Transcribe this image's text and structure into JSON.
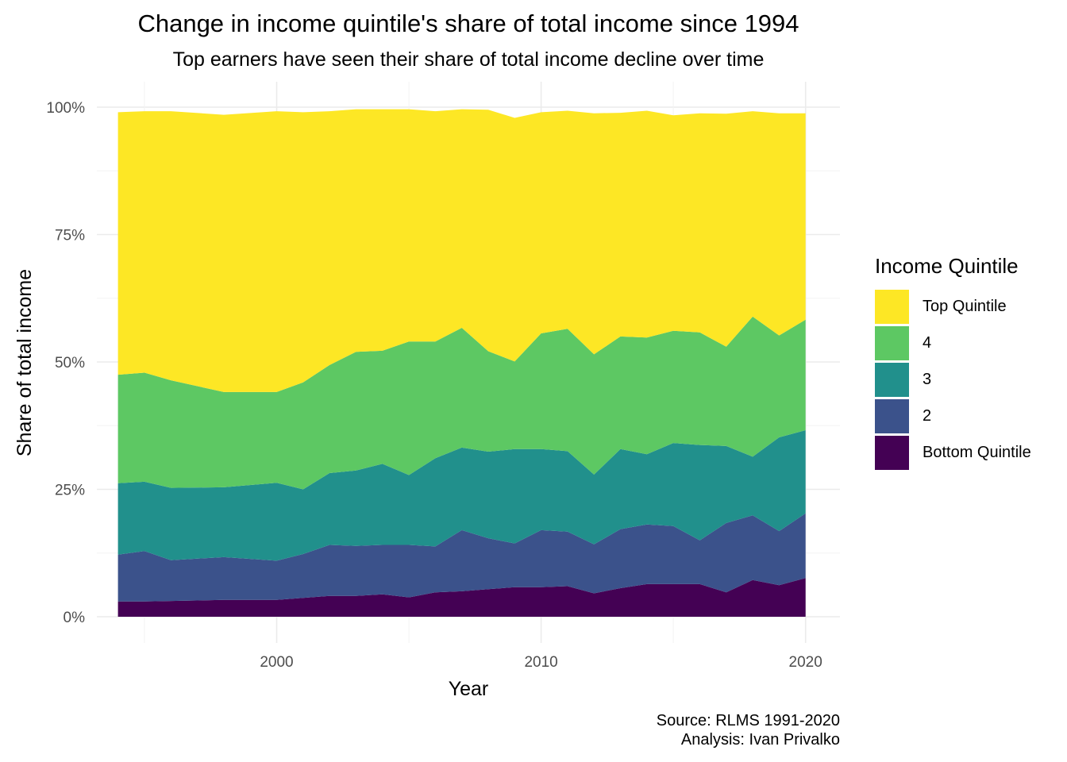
{
  "title": "Change in income quintile's share of total income since 1994",
  "subtitle": "Top earners have seen their share of total income decline over time",
  "caption": [
    "Source: RLMS 1991-2020",
    "Analysis: Ivan Privalko"
  ],
  "chart_data": {
    "type": "area",
    "stacked": true,
    "xlabel": "Year",
    "ylabel": "Share of total income",
    "xlim": [
      1993.2,
      2021.3
    ],
    "ylim": [
      0,
      1
    ],
    "x_ticks": [
      2000,
      2010,
      2020
    ],
    "y_ticks": [
      0,
      0.25,
      0.5,
      0.75,
      1.0
    ],
    "y_tick_labels": [
      "0%",
      "25%",
      "50%",
      "75%",
      "100%"
    ],
    "legend_title": "Income Quintile",
    "legend_position": "right",
    "x": [
      1994,
      1995,
      1996,
      1998,
      2000,
      2001,
      2002,
      2003,
      2004,
      2005,
      2006,
      2007,
      2008,
      2009,
      2010,
      2011,
      2012,
      2013,
      2014,
      2015,
      2016,
      2017,
      2018,
      2019,
      2020
    ],
    "series": [
      {
        "name": "Bottom Quintile",
        "color": "#440154",
        "values": [
          0.03,
          0.03,
          0.031,
          0.033,
          0.033,
          0.037,
          0.041,
          0.041,
          0.044,
          0.038,
          0.048,
          0.05,
          0.054,
          0.058,
          0.058,
          0.06,
          0.046,
          0.056,
          0.064,
          0.064,
          0.064,
          0.048,
          0.072,
          0.062,
          0.076
        ]
      },
      {
        "name": "2",
        "color": "#3B528B",
        "values": [
          0.092,
          0.099,
          0.08,
          0.084,
          0.077,
          0.086,
          0.1,
          0.098,
          0.097,
          0.103,
          0.09,
          0.12,
          0.1,
          0.086,
          0.112,
          0.107,
          0.096,
          0.116,
          0.117,
          0.114,
          0.086,
          0.136,
          0.127,
          0.106,
          0.127
        ]
      },
      {
        "name": "3",
        "color": "#21908C",
        "values": [
          0.14,
          0.136,
          0.142,
          0.137,
          0.153,
          0.127,
          0.141,
          0.148,
          0.159,
          0.137,
          0.173,
          0.162,
          0.17,
          0.185,
          0.159,
          0.158,
          0.137,
          0.157,
          0.138,
          0.163,
          0.187,
          0.151,
          0.115,
          0.184,
          0.163
        ]
      },
      {
        "name": "4",
        "color": "#5DC863",
        "values": [
          0.213,
          0.214,
          0.211,
          0.187,
          0.178,
          0.21,
          0.212,
          0.233,
          0.222,
          0.262,
          0.229,
          0.235,
          0.197,
          0.172,
          0.227,
          0.24,
          0.236,
          0.221,
          0.229,
          0.22,
          0.221,
          0.195,
          0.275,
          0.2,
          0.217
        ]
      },
      {
        "name": "Top Quintile",
        "color": "#FDE725",
        "values": [
          0.515,
          0.513,
          0.528,
          0.544,
          0.551,
          0.53,
          0.498,
          0.476,
          0.474,
          0.456,
          0.452,
          0.429,
          0.474,
          0.478,
          0.434,
          0.428,
          0.473,
          0.439,
          0.445,
          0.423,
          0.43,
          0.457,
          0.403,
          0.436,
          0.405
        ]
      }
    ]
  }
}
